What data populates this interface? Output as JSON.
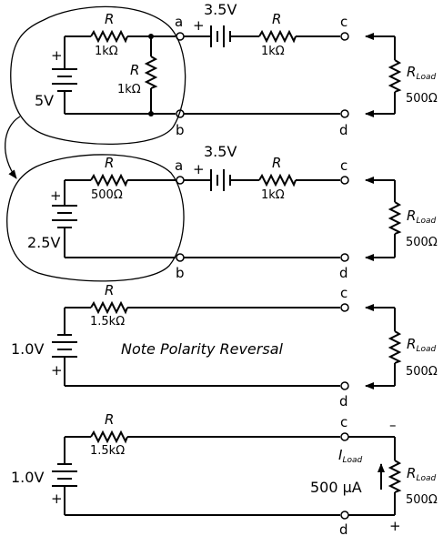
{
  "circuit1": {
    "source": "5V",
    "r_top_symbol": "R",
    "r_top_value": "1kΩ",
    "r_shunt_symbol": "R",
    "r_shunt_value": "1kΩ",
    "battery2": "3.5V",
    "r_series_symbol": "R",
    "r_series_value": "1kΩ",
    "node_a": "a",
    "node_b": "b",
    "node_c": "c",
    "node_d": "d",
    "rload_symbol": "R",
    "rload_sub": "Load",
    "rload_value": "500Ω",
    "plus": "+"
  },
  "circuit2": {
    "source": "2.5V",
    "r_top_symbol": "R",
    "r_top_value": "500Ω",
    "battery2": "3.5V",
    "r_series_symbol": "R",
    "r_series_value": "1kΩ",
    "node_a": "a",
    "node_b": "b",
    "node_c": "c",
    "node_d": "d",
    "rload_symbol": "R",
    "rload_sub": "Load",
    "rload_value": "500Ω",
    "plus": "+"
  },
  "circuit3": {
    "source": "1.0V",
    "r_symbol": "R",
    "r_value": "1.5kΩ",
    "note": "Note Polarity Reversal",
    "node_c": "c",
    "node_d": "d",
    "rload_symbol": "R",
    "rload_sub": "Load",
    "rload_value": "500Ω",
    "plus": "+"
  },
  "circuit4": {
    "source": "1.0V",
    "r_symbol": "R",
    "r_value": "1.5kΩ",
    "node_c": "c",
    "node_d": "d",
    "current_symbol": "I",
    "current_sub": "Load",
    "current_value": "500 µA",
    "rload_symbol": "R",
    "rload_sub": "Load",
    "rload_value": "500Ω",
    "plus": "+",
    "minus": "–"
  }
}
